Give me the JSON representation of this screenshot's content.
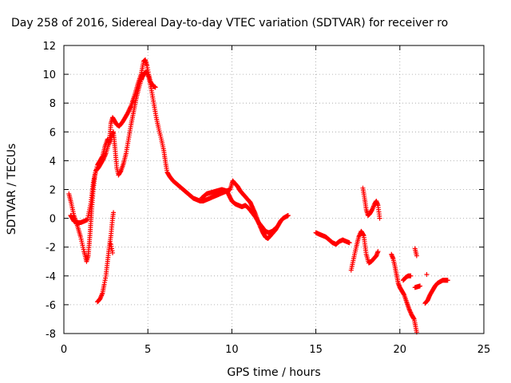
{
  "chart_data": {
    "type": "scatter",
    "title": "Day 258 of 2016, Sidereal Day-to-day VTEC variation (SDTVAR) for receiver ro",
    "xlabel": "GPS time / hours",
    "ylabel": "SDTVAR / TECUs",
    "xlim": [
      0,
      25
    ],
    "ylim": [
      -8,
      12
    ],
    "xticks": [
      "0",
      "5",
      "10",
      "15",
      "20",
      "25"
    ],
    "yticks": [
      "-8",
      "-6",
      "-4",
      "-2",
      "0",
      "2",
      "4",
      "6",
      "8",
      "10",
      "12"
    ],
    "grid": true,
    "marker": "+",
    "color": "#ff0000",
    "segments": [
      [
        [
          0.3,
          1.7
        ],
        [
          0.45,
          1.0
        ],
        [
          0.6,
          0.2
        ],
        [
          0.8,
          -0.5
        ],
        [
          1.0,
          -1.3
        ],
        [
          1.2,
          -2.3
        ],
        [
          1.35,
          -3.0
        ],
        [
          1.45,
          -2.6
        ],
        [
          1.55,
          -1.2
        ],
        [
          1.65,
          0.5
        ],
        [
          1.75,
          2.0
        ],
        [
          1.85,
          3.0
        ],
        [
          2.0,
          3.7
        ],
        [
          2.15,
          4.0
        ],
        [
          2.3,
          4.3
        ],
        [
          2.45,
          5.0
        ],
        [
          2.6,
          5.5
        ],
        [
          2.7,
          5.2
        ],
        [
          2.8,
          6.6
        ],
        [
          2.9,
          7.0
        ],
        [
          3.0,
          6.8
        ],
        [
          3.15,
          6.5
        ],
        [
          3.3,
          6.4
        ],
        [
          3.5,
          6.7
        ],
        [
          3.65,
          7.0
        ],
        [
          3.8,
          7.3
        ],
        [
          4.0,
          7.8
        ],
        [
          4.2,
          8.5
        ],
        [
          4.4,
          9.3
        ],
        [
          4.6,
          10.0
        ],
        [
          4.75,
          10.9
        ],
        [
          4.85,
          11.0
        ],
        [
          4.95,
          10.6
        ],
        [
          5.05,
          10.0
        ],
        [
          5.15,
          9.5
        ],
        [
          5.3,
          9.2
        ],
        [
          5.45,
          9.1
        ]
      ],
      [
        [
          0.4,
          0.2
        ],
        [
          0.6,
          -0.2
        ],
        [
          0.8,
          -0.3
        ],
        [
          1.0,
          -0.3
        ],
        [
          1.2,
          -0.2
        ],
        [
          1.4,
          -0.1
        ],
        [
          1.6,
          1.0
        ],
        [
          1.75,
          2.5
        ],
        [
          1.9,
          3.3
        ],
        [
          2.05,
          3.5
        ],
        [
          2.2,
          3.8
        ],
        [
          2.35,
          4.1
        ],
        [
          2.5,
          4.5
        ],
        [
          2.65,
          5.1
        ],
        [
          2.8,
          5.6
        ],
        [
          2.95,
          6.0
        ],
        [
          3.05,
          4.8
        ],
        [
          3.15,
          3.5
        ],
        [
          3.25,
          3.0
        ],
        [
          3.4,
          3.3
        ],
        [
          3.55,
          3.8
        ],
        [
          3.7,
          4.5
        ],
        [
          3.85,
          5.5
        ],
        [
          4.0,
          6.5
        ],
        [
          4.15,
          7.4
        ],
        [
          4.3,
          8.3
        ],
        [
          4.45,
          9.0
        ],
        [
          4.6,
          9.6
        ],
        [
          4.75,
          10.0
        ],
        [
          4.9,
          10.2
        ],
        [
          5.05,
          9.8
        ],
        [
          5.2,
          9.0
        ],
        [
          5.35,
          8.0
        ],
        [
          5.5,
          7.0
        ],
        [
          5.65,
          6.2
        ],
        [
          5.8,
          5.5
        ],
        [
          5.95,
          4.7
        ],
        [
          6.05,
          3.9
        ],
        [
          6.15,
          3.2
        ],
        [
          6.3,
          2.9
        ],
        [
          6.5,
          2.6
        ],
        [
          6.7,
          2.4
        ],
        [
          6.9,
          2.2
        ],
        [
          7.1,
          2.0
        ],
        [
          7.3,
          1.8
        ],
        [
          7.5,
          1.6
        ],
        [
          7.7,
          1.4
        ],
        [
          7.9,
          1.3
        ],
        [
          8.1,
          1.2
        ],
        [
          8.3,
          1.2
        ],
        [
          8.5,
          1.3
        ],
        [
          8.7,
          1.4
        ],
        [
          8.9,
          1.5
        ],
        [
          9.1,
          1.6
        ],
        [
          9.3,
          1.7
        ],
        [
          9.5,
          1.8
        ],
        [
          9.7,
          1.9
        ],
        [
          9.9,
          2.0
        ],
        [
          10.05,
          2.6
        ],
        [
          10.2,
          2.4
        ],
        [
          10.35,
          2.2
        ],
        [
          10.5,
          1.9
        ],
        [
          10.65,
          1.7
        ],
        [
          10.8,
          1.5
        ],
        [
          10.95,
          1.3
        ],
        [
          11.1,
          1.1
        ],
        [
          11.25,
          0.7
        ],
        [
          11.4,
          0.3
        ],
        [
          11.55,
          -0.2
        ],
        [
          11.7,
          -0.6
        ],
        [
          11.85,
          -1.0
        ],
        [
          12.0,
          -1.3
        ],
        [
          12.15,
          -1.4
        ],
        [
          12.3,
          -1.2
        ],
        [
          12.45,
          -1.0
        ],
        [
          12.6,
          -0.8
        ],
        [
          12.75,
          -0.5
        ],
        [
          12.9,
          -0.2
        ],
        [
          13.05,
          0.0
        ],
        [
          13.2,
          0.1
        ],
        [
          13.35,
          0.2
        ]
      ],
      [
        [
          8.2,
          1.4
        ],
        [
          8.5,
          1.7
        ],
        [
          8.8,
          1.8
        ],
        [
          9.1,
          1.9
        ],
        [
          9.4,
          2.0
        ],
        [
          9.7,
          1.9
        ],
        [
          10.0,
          1.2
        ],
        [
          10.2,
          1.0
        ],
        [
          10.4,
          0.9
        ],
        [
          10.6,
          0.8
        ],
        [
          10.8,
          0.9
        ],
        [
          11.0,
          0.7
        ],
        [
          11.2,
          0.4
        ],
        [
          11.4,
          0.1
        ],
        [
          11.6,
          -0.3
        ],
        [
          11.8,
          -0.6
        ],
        [
          12.0,
          -0.9
        ],
        [
          12.2,
          -1.0
        ],
        [
          12.4,
          -0.9
        ],
        [
          12.6,
          -0.7
        ]
      ],
      [
        [
          2.0,
          -5.8
        ],
        [
          2.15,
          -5.6
        ],
        [
          2.3,
          -5.2
        ],
        [
          2.4,
          -4.6
        ],
        [
          2.5,
          -4.0
        ],
        [
          2.6,
          -3.0
        ],
        [
          2.7,
          -2.0
        ],
        [
          2.8,
          -1.2
        ],
        [
          2.9,
          0.0
        ],
        [
          2.95,
          0.4
        ]
      ],
      [
        [
          2.8,
          -1.8
        ],
        [
          2.9,
          -2.4
        ]
      ],
      [
        [
          15.0,
          -1.0
        ],
        [
          15.2,
          -1.1
        ],
        [
          15.4,
          -1.2
        ],
        [
          15.6,
          -1.3
        ],
        [
          15.8,
          -1.5
        ],
        [
          16.0,
          -1.7
        ],
        [
          16.2,
          -1.8
        ],
        [
          16.4,
          -1.6
        ],
        [
          16.6,
          -1.5
        ],
        [
          16.8,
          -1.6
        ],
        [
          17.0,
          -1.7
        ]
      ],
      [
        [
          17.1,
          -3.6
        ],
        [
          17.25,
          -2.8
        ],
        [
          17.4,
          -2.0
        ],
        [
          17.55,
          -1.3
        ],
        [
          17.7,
          -0.9
        ],
        [
          17.85,
          -1.2
        ],
        [
          18.0,
          -2.5
        ],
        [
          18.15,
          -3.1
        ],
        [
          18.3,
          -3.0
        ],
        [
          18.45,
          -2.8
        ],
        [
          18.6,
          -2.6
        ],
        [
          18.7,
          -2.3
        ]
      ],
      [
        [
          17.8,
          2.1
        ],
        [
          17.9,
          1.4
        ],
        [
          18.0,
          0.6
        ],
        [
          18.1,
          0.2
        ],
        [
          18.2,
          0.3
        ],
        [
          18.35,
          0.6
        ],
        [
          18.5,
          1.0
        ],
        [
          18.6,
          1.2
        ],
        [
          18.7,
          0.9
        ],
        [
          18.8,
          0.0
        ]
      ],
      [
        [
          19.5,
          -2.5
        ],
        [
          19.6,
          -2.8
        ],
        [
          19.7,
          -3.3
        ],
        [
          19.8,
          -3.9
        ],
        [
          19.9,
          -4.5
        ],
        [
          20.0,
          -4.8
        ],
        [
          20.1,
          -5.0
        ],
        [
          20.25,
          -5.3
        ],
        [
          20.4,
          -5.8
        ],
        [
          20.55,
          -6.3
        ],
        [
          20.7,
          -6.7
        ],
        [
          20.85,
          -7.0
        ],
        [
          21.0,
          -7.9
        ]
      ],
      [
        [
          20.2,
          -4.3
        ],
        [
          20.35,
          -4.1
        ],
        [
          20.5,
          -4.0
        ],
        [
          20.65,
          -4.0
        ]
      ],
      [
        [
          20.9,
          -2.1
        ],
        [
          21.0,
          -2.6
        ]
      ],
      [
        [
          20.9,
          -4.8
        ],
        [
          21.2,
          -4.7
        ]
      ],
      [
        [
          21.5,
          -5.9
        ],
        [
          21.65,
          -5.7
        ],
        [
          21.8,
          -5.3
        ],
        [
          21.95,
          -5.0
        ],
        [
          22.1,
          -4.7
        ],
        [
          22.25,
          -4.5
        ],
        [
          22.4,
          -4.4
        ],
        [
          22.55,
          -4.3
        ],
        [
          22.7,
          -4.3
        ],
        [
          22.85,
          -4.3
        ]
      ],
      [
        [
          21.6,
          -3.9
        ]
      ]
    ]
  }
}
